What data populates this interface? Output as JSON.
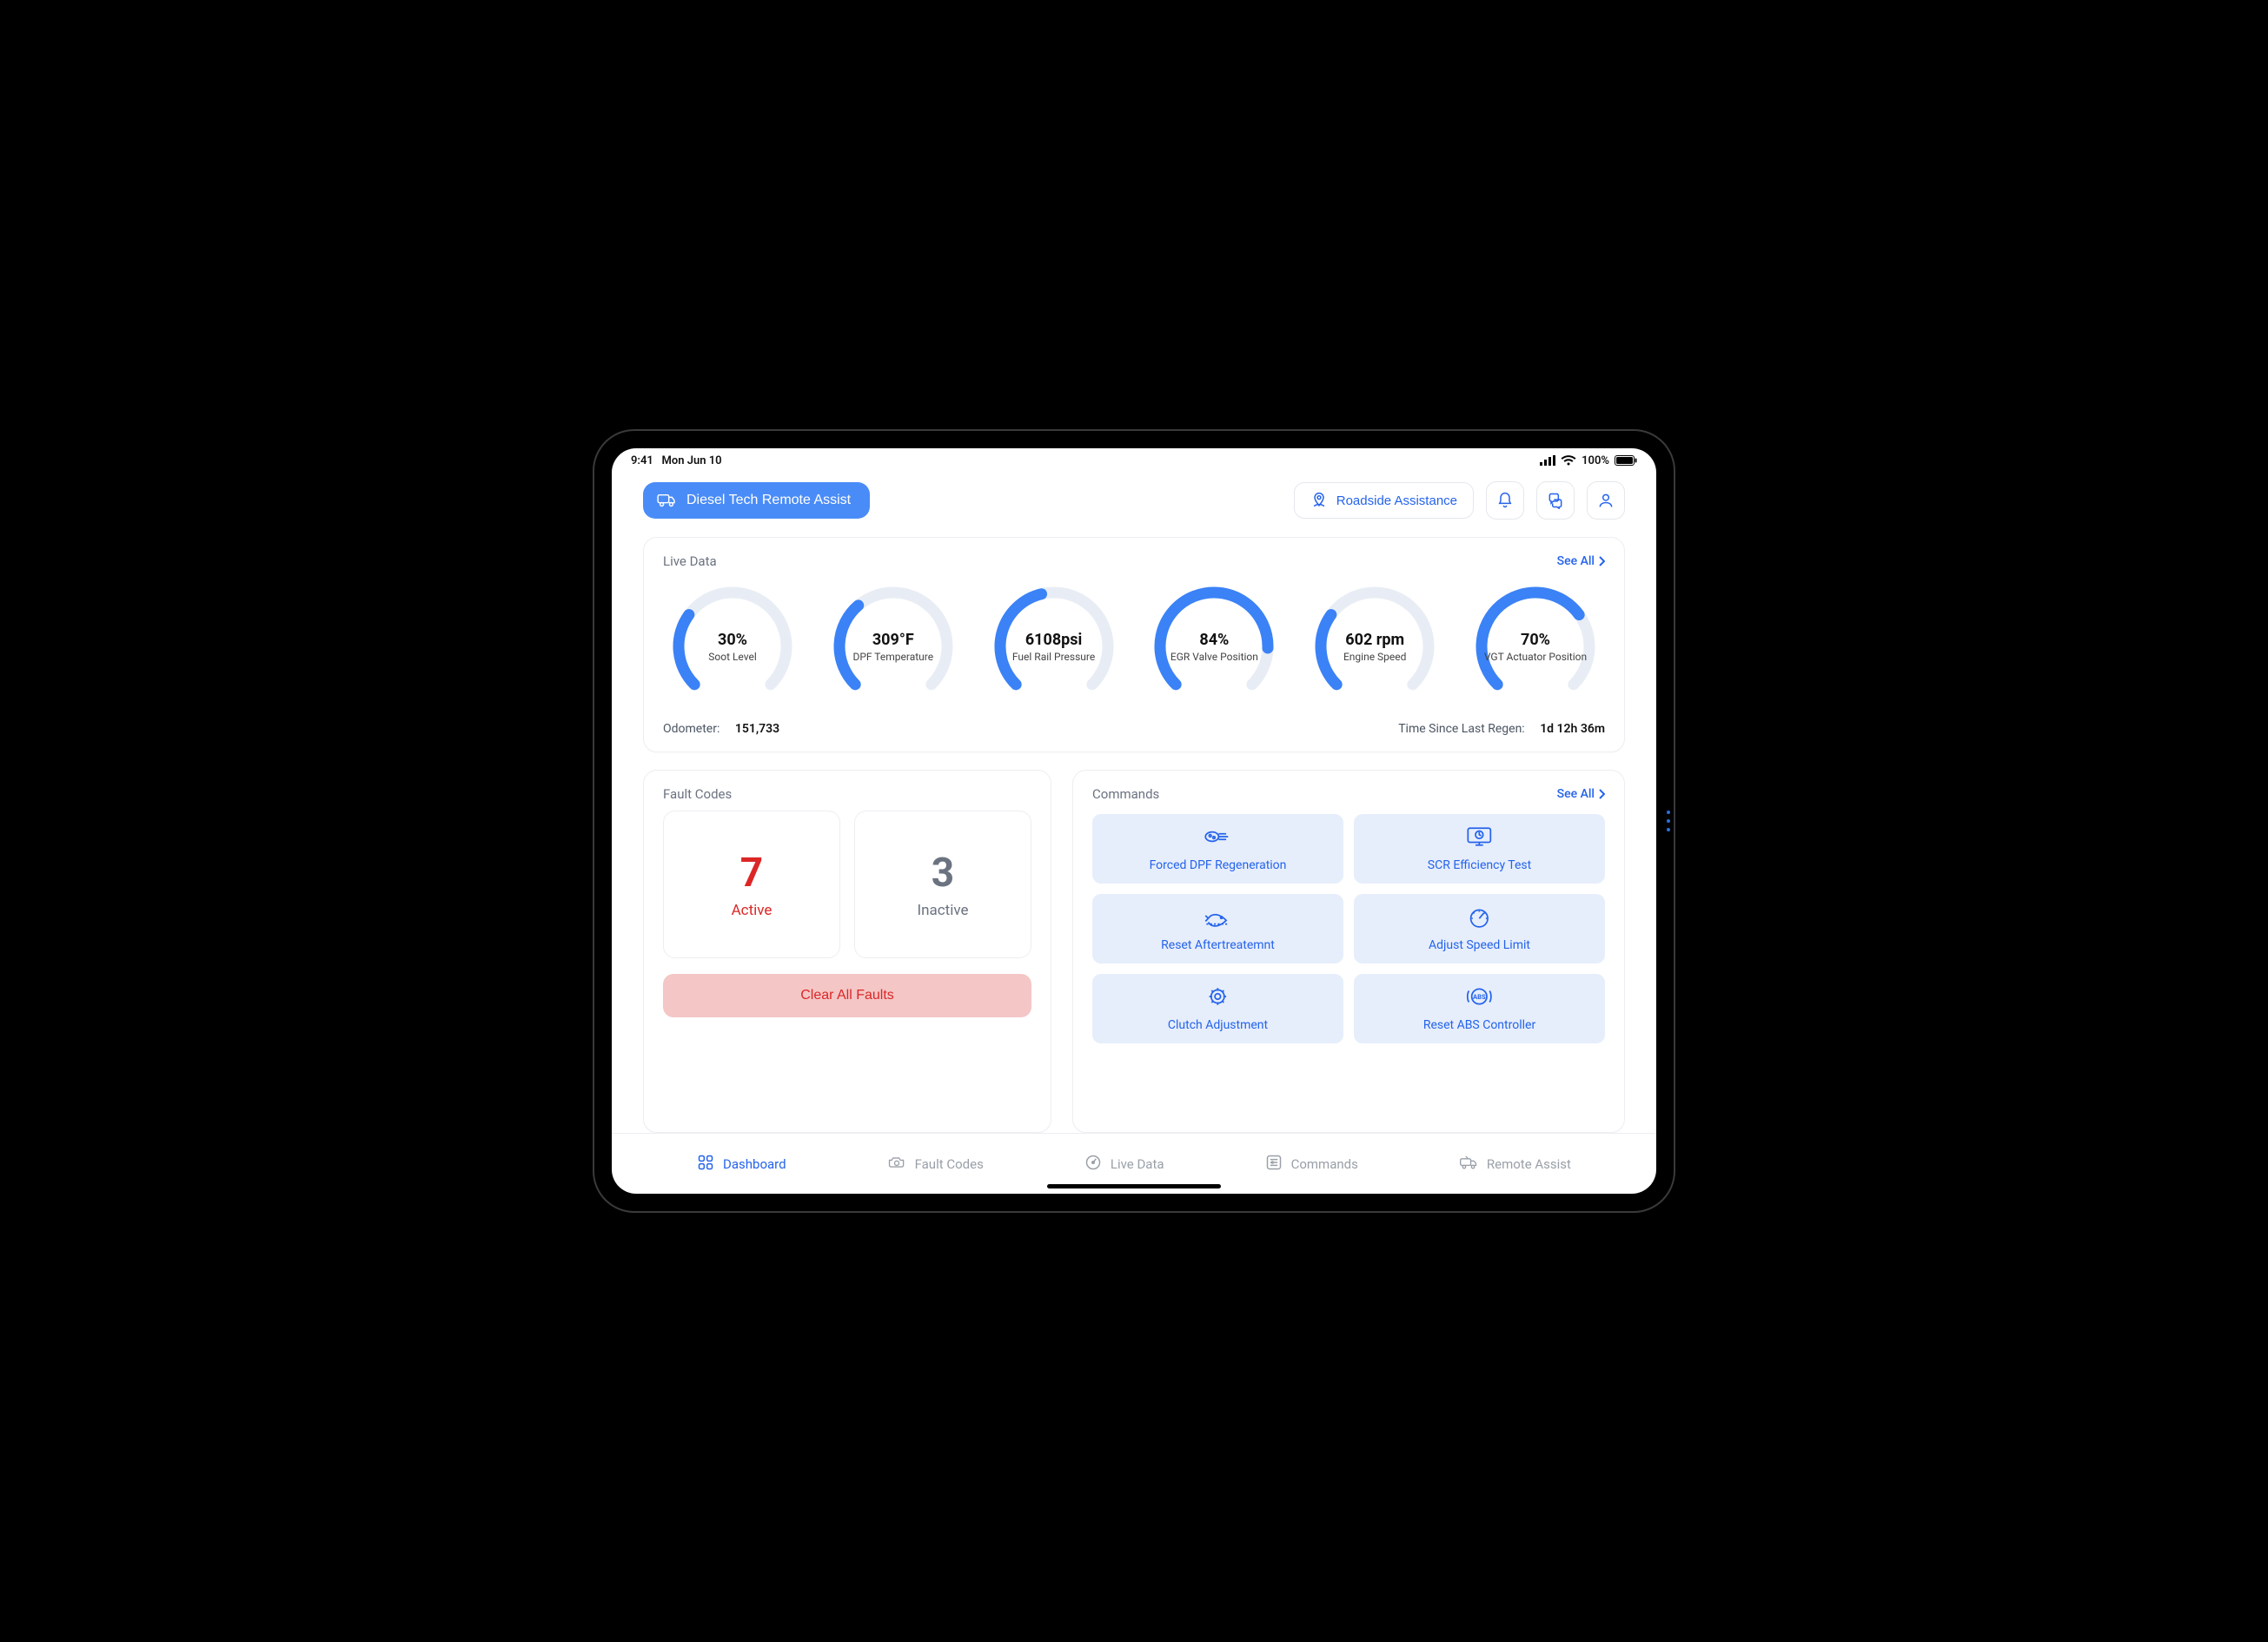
{
  "status_bar": {
    "time": "9:41",
    "date": "Mon Jun 10",
    "battery": "100%"
  },
  "header": {
    "brand": "Diesel Tech Remote Assist",
    "roadside": "Roadside Assistance"
  },
  "colors": {
    "primary": "#2563eb",
    "brand_button": "#4A8CF7",
    "gauge_track": "#e8edf5",
    "gauge_fill": "#3b82f6",
    "danger": "#dc2626",
    "danger_bg": "#f4c6c6",
    "inactive_text": "#6b7280",
    "cmd_bg": "#e6eefb",
    "card_border": "#eceef1"
  },
  "live_data": {
    "title": "Live Data",
    "see_all": "See All",
    "ring": {
      "radius": 62,
      "stroke_width": 13,
      "start_angle_deg": 135,
      "sweep_deg": 270
    },
    "gauges": [
      {
        "value": "30%",
        "label": "Soot Level",
        "percent": 30
      },
      {
        "value": "309°F",
        "label": "DPF Temperature",
        "percent": 35
      },
      {
        "value": "6108psi",
        "label": "Fuel Rail Pressure",
        "percent": 45
      },
      {
        "value": "84%",
        "label": "EGR Valve Position",
        "percent": 84
      },
      {
        "value": "602 rpm",
        "label": "Engine Speed",
        "percent": 30
      },
      {
        "value": "70%",
        "label": "VGT Actuator Position",
        "percent": 70
      }
    ],
    "odometer_label": "Odometer:",
    "odometer_value": "151,733",
    "regen_label": "Time Since Last Regen:",
    "regen_value": "1d 12h 36m"
  },
  "faults": {
    "title": "Fault Codes",
    "active_count": "7",
    "active_label": "Active",
    "inactive_count": "3",
    "inactive_label": "Inactive",
    "clear_all": "Clear All Faults"
  },
  "commands": {
    "title": "Commands",
    "see_all": "See All",
    "items": [
      "Forced DPF Regeneration",
      "SCR  Efficiency Test",
      "Reset Aftertreatemnt",
      "Adjust  Speed Limit",
      "Clutch Adjustment",
      "Reset ABS Controller"
    ]
  },
  "nav": {
    "items": [
      "Dashboard",
      "Fault Codes",
      "Live Data",
      "Commands",
      "Remote Assist"
    ],
    "active_index": 0
  }
}
